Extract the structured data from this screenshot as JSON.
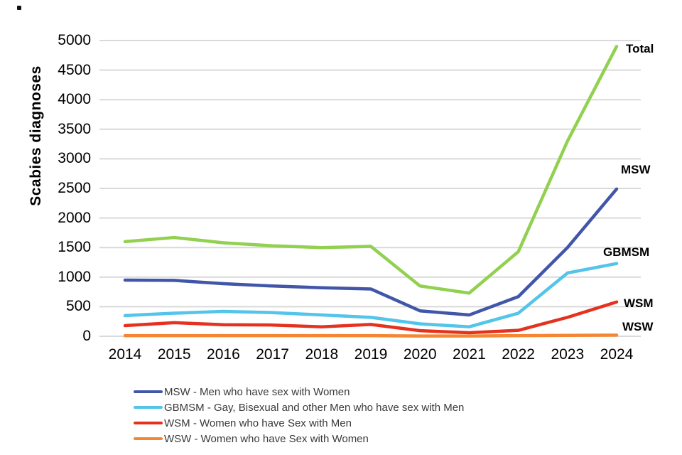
{
  "chart_data": {
    "type": "line",
    "title": "",
    "ylabel": "Scabies diagnoses",
    "xlabel": "",
    "x": [
      2014,
      2015,
      2016,
      2017,
      2018,
      2019,
      2020,
      2021,
      2022,
      2023,
      2024
    ],
    "ylim": [
      0,
      5000
    ],
    "ytick_step": 500,
    "yticks": [
      0,
      500,
      1000,
      1500,
      2000,
      2500,
      3000,
      3500,
      4000,
      4500,
      5000
    ],
    "grid": "horizontal",
    "gridline_color": "#d9d9d9",
    "legend_position": "bottom-left",
    "series": [
      {
        "name": "Total",
        "color": "#92d050",
        "end_label": "Total",
        "legend_label": null,
        "values": [
          1600,
          1670,
          1580,
          1530,
          1500,
          1520,
          850,
          730,
          1430,
          3300,
          4900
        ]
      },
      {
        "name": "MSW",
        "color": "#4156a8",
        "end_label": "MSW",
        "legend_label": "MSW - Men who have sex with Women",
        "values": [
          950,
          945,
          890,
          850,
          820,
          800,
          430,
          360,
          670,
          1500,
          2490
        ]
      },
      {
        "name": "GBMSM",
        "color": "#53c4ea",
        "end_label": "GBMSM",
        "legend_label": "GBMSM - Gay, Bisexual and other Men who have sex with Men",
        "values": [
          350,
          390,
          420,
          400,
          360,
          320,
          210,
          160,
          390,
          1070,
          1230
        ]
      },
      {
        "name": "WSM",
        "color": "#e5321e",
        "end_label": "WSM",
        "legend_label": "WSM - Women who have Sex with Men",
        "values": [
          180,
          230,
          195,
          190,
          160,
          200,
          95,
          60,
          100,
          320,
          580
        ]
      },
      {
        "name": "WSW",
        "color": "#f58634",
        "end_label": "WSW",
        "legend_label": "WSW - Women who have Sex with Women",
        "values": [
          10,
          10,
          10,
          10,
          10,
          10,
          5,
          5,
          10,
          15,
          20
        ]
      }
    ]
  }
}
